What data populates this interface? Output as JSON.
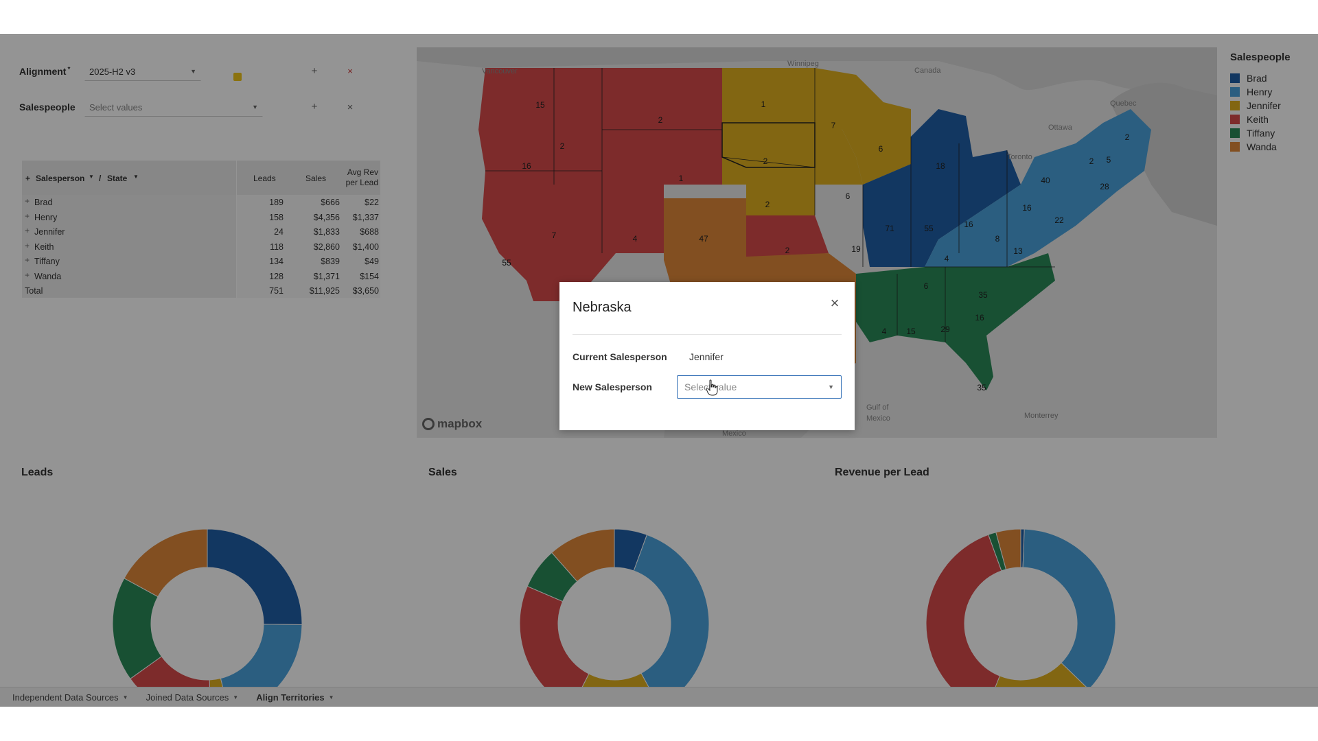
{
  "controls": {
    "alignment_label": "Alignment",
    "alignment_required": "*",
    "alignment_value": "2025-H2 v3",
    "salespeople_label": "Salespeople",
    "salespeople_placeholder": "Select values",
    "add_symbol": "+",
    "remove_symbol": "×"
  },
  "pivot": {
    "header": {
      "plus": "+",
      "salesperson": "Salesperson",
      "separator": "/",
      "state": "State",
      "leads": "Leads",
      "sales": "Sales",
      "avg_rev_line1": "Avg Rev",
      "avg_rev_line2": "per Lead"
    },
    "rows": [
      {
        "name": "Brad",
        "leads": "189",
        "sales": "$666",
        "avg": "$22"
      },
      {
        "name": "Henry",
        "leads": "158",
        "sales": "$4,356",
        "avg": "$1,337"
      },
      {
        "name": "Jennifer",
        "leads": "24",
        "sales": "$1,833",
        "avg": "$688"
      },
      {
        "name": "Keith",
        "leads": "118",
        "sales": "$2,860",
        "avg": "$1,400"
      },
      {
        "name": "Tiffany",
        "leads": "134",
        "sales": "$839",
        "avg": "$49"
      },
      {
        "name": "Wanda",
        "leads": "128",
        "sales": "$1,371",
        "avg": "$154"
      }
    ],
    "total": {
      "name": "Total",
      "leads": "751",
      "sales": "$11,925",
      "avg": "$3,650"
    }
  },
  "map": {
    "attribution": "mapbox",
    "place_labels": [
      "Vancouver",
      "Winnipeg",
      "Canada",
      "Quebec",
      "Ottawa",
      "Toronto",
      "Gulf of",
      "Mexico",
      "Mexico",
      "Monterrey"
    ],
    "colors": {
      "brad": "#1f5fa8",
      "henry": "#4aa3dc",
      "jennifer": "#e0b020",
      "keith": "#d84a4a",
      "tiffany": "#2a8a58",
      "wanda": "#e0893a"
    }
  },
  "legend": {
    "title": "Salespeople",
    "items": [
      {
        "name": "Brad",
        "color": "#1f5fa8"
      },
      {
        "name": "Henry",
        "color": "#4aa3dc"
      },
      {
        "name": "Jennifer",
        "color": "#e0b020"
      },
      {
        "name": "Keith",
        "color": "#d84a4a"
      },
      {
        "name": "Tiffany",
        "color": "#2a8a58"
      },
      {
        "name": "Wanda",
        "color": "#e0893a"
      }
    ]
  },
  "charts": {
    "leads_title": "Leads",
    "sales_title": "Sales",
    "rev_title": "Revenue per Lead"
  },
  "chart_data": [
    {
      "type": "pie",
      "title": "Leads",
      "categories": [
        "Brad",
        "Henry",
        "Jennifer",
        "Keith",
        "Tiffany",
        "Wanda"
      ],
      "values": [
        189,
        158,
        24,
        118,
        134,
        128
      ]
    },
    {
      "type": "pie",
      "title": "Sales",
      "categories": [
        "Brad",
        "Henry",
        "Jennifer",
        "Keith",
        "Tiffany",
        "Wanda"
      ],
      "values": [
        666,
        4356,
        1833,
        2860,
        839,
        1371
      ]
    },
    {
      "type": "pie",
      "title": "Revenue per Lead",
      "categories": [
        "Brad",
        "Henry",
        "Jennifer",
        "Keith",
        "Tiffany",
        "Wanda"
      ],
      "values": [
        22,
        1337,
        688,
        1400,
        49,
        154
      ]
    }
  ],
  "tabs": [
    {
      "label": "Independent Data Sources",
      "active": false
    },
    {
      "label": "Joined Data Sources",
      "active": false
    },
    {
      "label": "Align Territories",
      "active": true
    }
  ],
  "dialog": {
    "title": "Nebraska",
    "close_symbol": "×",
    "current_label": "Current Salesperson",
    "current_value": "Jennifer",
    "new_label": "New Salesperson",
    "new_placeholder": "Select value"
  }
}
